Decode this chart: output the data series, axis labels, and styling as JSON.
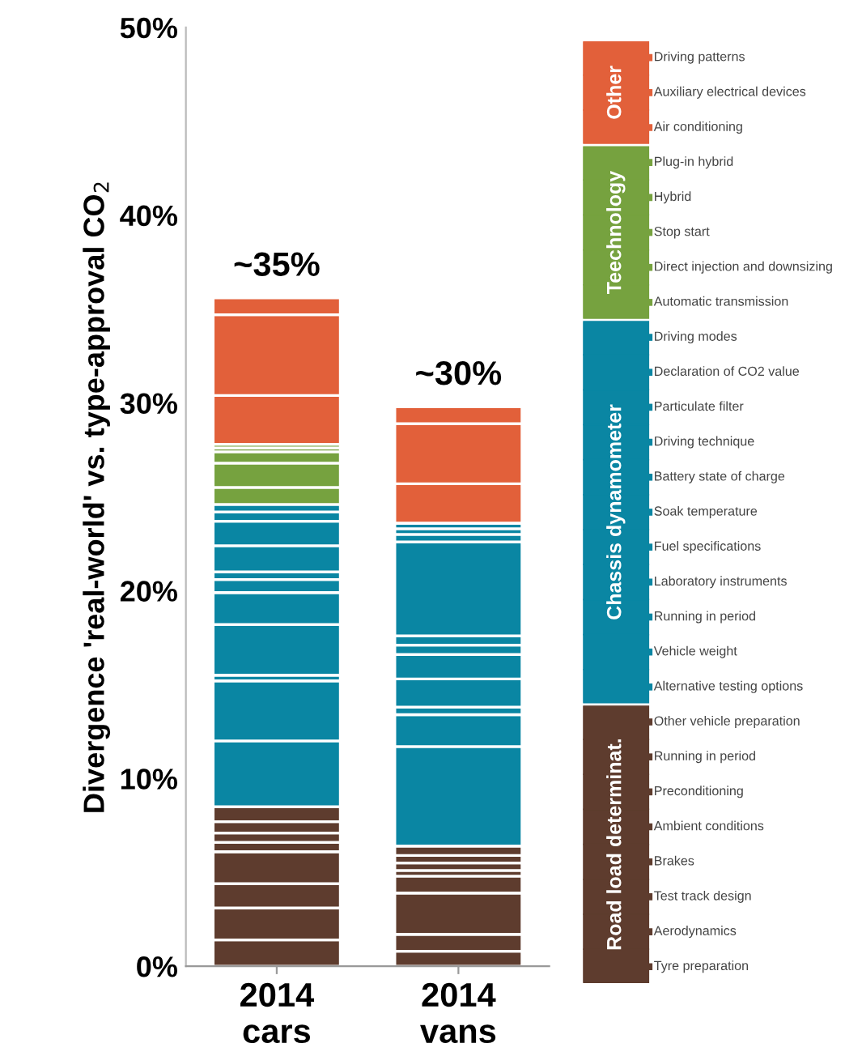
{
  "chart_data": {
    "type": "bar",
    "stacked": true,
    "categories": [
      "2014\ncars",
      "2014\nvans"
    ],
    "ylabel": "Divergence 'real-world' vs. type-approval CO$_{2}$",
    "ylim": [
      0,
      50
    ],
    "yticks": [
      {
        "value": 0,
        "label": "0%"
      },
      {
        "value": 10,
        "label": "10%"
      },
      {
        "value": 20,
        "label": "20%"
      },
      {
        "value": 30,
        "label": "30%"
      },
      {
        "value": 40,
        "label": "40%"
      },
      {
        "value": 50,
        "label": "50%"
      }
    ],
    "totals": [
      "~35%",
      "~30%"
    ],
    "legend": "right",
    "annotations": [
      "Road load determinat.",
      "Chassis dynamometer",
      "Teechnology",
      "Other"
    ],
    "series": [
      {
        "name": "Tyre preparation",
        "color": "#5e3c2e",
        "values": [
          1.4,
          0.8
        ]
      },
      {
        "name": "Aerodynamics",
        "color": "#5e3c2e",
        "values": [
          1.7,
          0.9
        ]
      },
      {
        "name": "Test track design",
        "color": "#5e3c2e",
        "values": [
          1.3,
          2.2
        ]
      },
      {
        "name": "Brakes",
        "color": "#5e3c2e",
        "values": [
          1.7,
          0.9
        ]
      },
      {
        "name": "Ambient conditions",
        "color": "#5e3c2e",
        "values": [
          0.5,
          0.3
        ]
      },
      {
        "name": "Preconditioning",
        "color": "#5e3c2e",
        "values": [
          0.5,
          0.4
        ]
      },
      {
        "name": "Running in period",
        "color": "#5e3c2e",
        "values": [
          0.6,
          0.4
        ]
      },
      {
        "name": "Other vehicle preparation",
        "color": "#5e3c2e",
        "values": [
          0.8,
          0.5
        ]
      },
      {
        "name": "Alternative testing options",
        "color": "#0a86a3",
        "values": [
          3.5,
          5.3
        ]
      },
      {
        "name": "Vehicle weight",
        "color": "#0a86a3",
        "values": [
          3.2,
          1.7
        ]
      },
      {
        "name": "Running in period",
        "color": "#0a86a3",
        "values": [
          0.3,
          0.4
        ]
      },
      {
        "name": "Laboratory instruments",
        "color": "#0a86a3",
        "values": [
          2.7,
          1.5
        ]
      },
      {
        "name": "Fuel specifications",
        "color": "#0a86a3",
        "values": [
          1.7,
          1.3
        ]
      },
      {
        "name": "Soak temperature",
        "color": "#0a86a3",
        "values": [
          0.7,
          0.5
        ]
      },
      {
        "name": "Battery state of charge",
        "color": "#0a86a3",
        "values": [
          0.4,
          0.5
        ]
      },
      {
        "name": "Driving technique",
        "color": "#0a86a3",
        "values": [
          1.4,
          5.0
        ]
      },
      {
        "name": "Particulate filter",
        "color": "#0a86a3",
        "values": [
          1.3,
          0.4
        ]
      },
      {
        "name": "Declaration of CO2 value",
        "color": "#0a86a3",
        "values": [
          0.5,
          0.3
        ]
      },
      {
        "name": "Driving modes",
        "color": "#0a86a3",
        "values": [
          0.4,
          0.3
        ]
      },
      {
        "name": "Automatic transmission",
        "color": "#76a23f",
        "values": [
          0.9,
          0
        ]
      },
      {
        "name": "Direct injection and downsizing",
        "color": "#76a23f",
        "values": [
          1.3,
          0
        ]
      },
      {
        "name": "Stop start",
        "color": "#76a23f",
        "values": [
          0.6,
          0
        ]
      },
      {
        "name": "Hybrid",
        "color": "#76a23f",
        "values": [
          0.2,
          0
        ]
      },
      {
        "name": "Plug-in hybrid",
        "color": "#76a23f",
        "values": [
          0.2,
          0
        ]
      },
      {
        "name": "Air conditioning",
        "color": "#e2603a",
        "values": [
          2.6,
          2.1
        ]
      },
      {
        "name": "Auxiliary electrical devices",
        "color": "#e2603a",
        "values": [
          4.3,
          3.2
        ]
      },
      {
        "name": "Driving patterns",
        "color": "#e2603a",
        "values": [
          0.9,
          0.9
        ]
      }
    ]
  }
}
